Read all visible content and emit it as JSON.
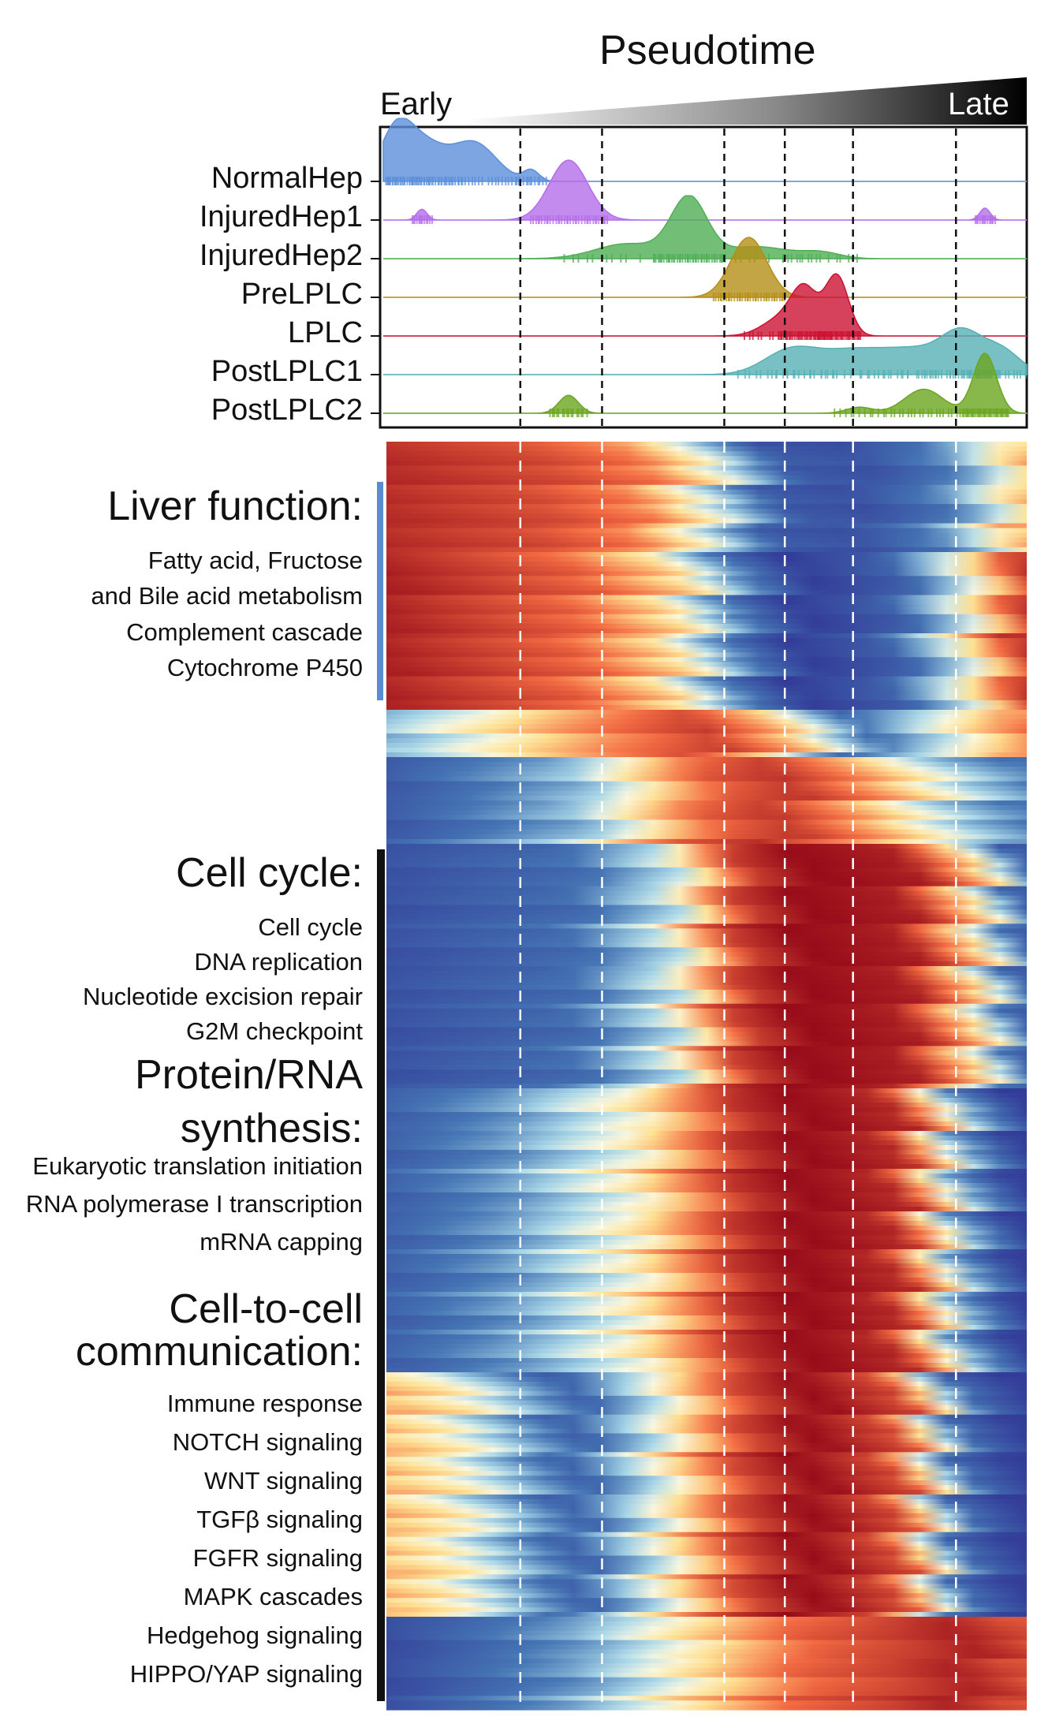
{
  "chart_data": {
    "type": "ridgeline+heatmap",
    "title": "Pseudotime",
    "x_axis": {
      "start_label": "Early",
      "end_label": "Late",
      "range": [
        0,
        1
      ]
    },
    "boundaries": [
      0.213,
      0.34,
      0.53,
      0.624,
      0.73,
      0.89
    ],
    "density_tracks": [
      {
        "name": "NormalHep",
        "color": "#5b8fd9",
        "peaks": [
          [
            0.02,
            0.025,
            0.85
          ],
          [
            0.065,
            0.03,
            0.55
          ],
          [
            0.14,
            0.035,
            0.65
          ],
          [
            0.23,
            0.012,
            0.18
          ]
        ]
      },
      {
        "name": "InjuredHep1",
        "color": "#b46ee8",
        "peaks": [
          [
            0.06,
            0.008,
            0.18
          ],
          [
            0.288,
            0.03,
            1.0
          ],
          [
            0.935,
            0.008,
            0.2
          ]
        ]
      },
      {
        "name": "InjuredHep2",
        "color": "#4fae55",
        "peaks": [
          [
            0.38,
            0.05,
            0.25
          ],
          [
            0.475,
            0.028,
            1.0
          ],
          [
            0.58,
            0.05,
            0.2
          ],
          [
            0.68,
            0.03,
            0.1
          ]
        ]
      },
      {
        "name": "PreLPLC",
        "color": "#b58e16",
        "peaks": [
          [
            0.568,
            0.028,
            1.0
          ]
        ]
      },
      {
        "name": "LPLC",
        "color": "#cc1233",
        "peaks": [
          [
            0.655,
            0.02,
            0.7
          ],
          [
            0.705,
            0.018,
            1.0
          ],
          [
            0.62,
            0.03,
            0.3
          ]
        ]
      },
      {
        "name": "PostLPLC1",
        "color": "#56b0b5",
        "peaks": [
          [
            0.63,
            0.04,
            0.35
          ],
          [
            0.73,
            0.06,
            0.4
          ],
          [
            0.84,
            0.05,
            0.35
          ],
          [
            0.9,
            0.03,
            0.55
          ],
          [
            0.96,
            0.03,
            0.4
          ]
        ]
      },
      {
        "name": "PostLPLC2",
        "color": "#6aa51f",
        "peaks": [
          [
            0.288,
            0.015,
            0.3
          ],
          [
            0.74,
            0.02,
            0.1
          ],
          [
            0.84,
            0.03,
            0.4
          ],
          [
            0.935,
            0.018,
            1.0
          ]
        ]
      }
    ],
    "heatmap": {
      "colormap": "blue-white-yellow-red",
      "groups": [
        {
          "name": "Liver function",
          "bar_color": "#5b8bd0"
        },
        {
          "name": "Cell cycle / Protein-RNA synthesis / Cell-to-cell communication",
          "bar_color": "#111111"
        }
      ]
    }
  },
  "labels": {
    "title": "Pseudotime",
    "early": "Early",
    "late": "Late",
    "cell_types": [
      "NormalHep",
      "InjuredHep1",
      "InjuredHep2",
      "PreLPLC",
      "LPLC",
      "PostLPLC1",
      "PostLPLC2"
    ],
    "liver_head": "Liver function:",
    "liver_items": [
      "Fatty acid, Fructose",
      "and Bile acid metabolism",
      "Complement cascade",
      "Cytochrome P450"
    ],
    "cellcycle_head": "Cell cycle:",
    "cellcycle_items": [
      "Cell cycle",
      "DNA replication",
      "Nucleotide excision repair",
      "G2M checkpoint"
    ],
    "protein_head_1": "Protein/RNA",
    "protein_head_2": "synthesis:",
    "protein_items": [
      "Eukaryotic translation initiation",
      "RNA polymerase I transcription",
      "mRNA capping"
    ],
    "comm_head_1": "Cell-to-cell",
    "comm_head_2": "communication:",
    "comm_items": [
      "Immune response",
      "NOTCH signaling",
      "WNT signaling",
      "TGFβ signaling",
      "FGFR signaling",
      "MAPK cascades",
      "Hedgehog signaling",
      "HIPPO/YAP signaling"
    ]
  }
}
